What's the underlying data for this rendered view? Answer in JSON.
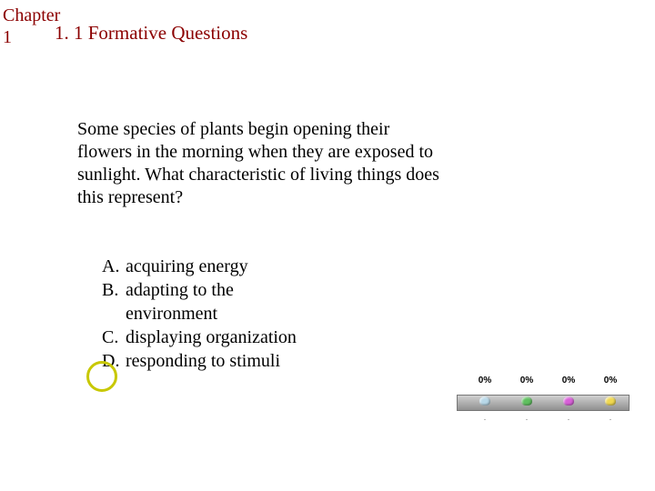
{
  "chapter": {
    "label_line1": "Chapter",
    "label_line2": "1"
  },
  "section": {
    "title": "1. 1 Formative Questions"
  },
  "question": {
    "text": "Some species of plants begin opening their flowers in the morning when they are exposed to sunlight. What characteristic of living things does this represent?"
  },
  "answers": {
    "a": {
      "letter": "A.",
      "text": "acquiring energy"
    },
    "b": {
      "letter": "B.",
      "text_line1": "adapting to the",
      "text_line2": "environment"
    },
    "c": {
      "letter": "C.",
      "text": "displaying organization"
    },
    "d": {
      "letter": "D.",
      "text": "responding to stimuli"
    }
  },
  "circle": {
    "color": "#c8c800"
  },
  "poll": {
    "items": [
      {
        "pct": "0%",
        "color": "#b8d8e8",
        "sub": "."
      },
      {
        "pct": "0%",
        "color": "#60c060",
        "sub": "."
      },
      {
        "pct": "0%",
        "color": "#d860d8",
        "sub": "."
      },
      {
        "pct": "0%",
        "color": "#f0d850",
        "sub": "."
      }
    ]
  }
}
